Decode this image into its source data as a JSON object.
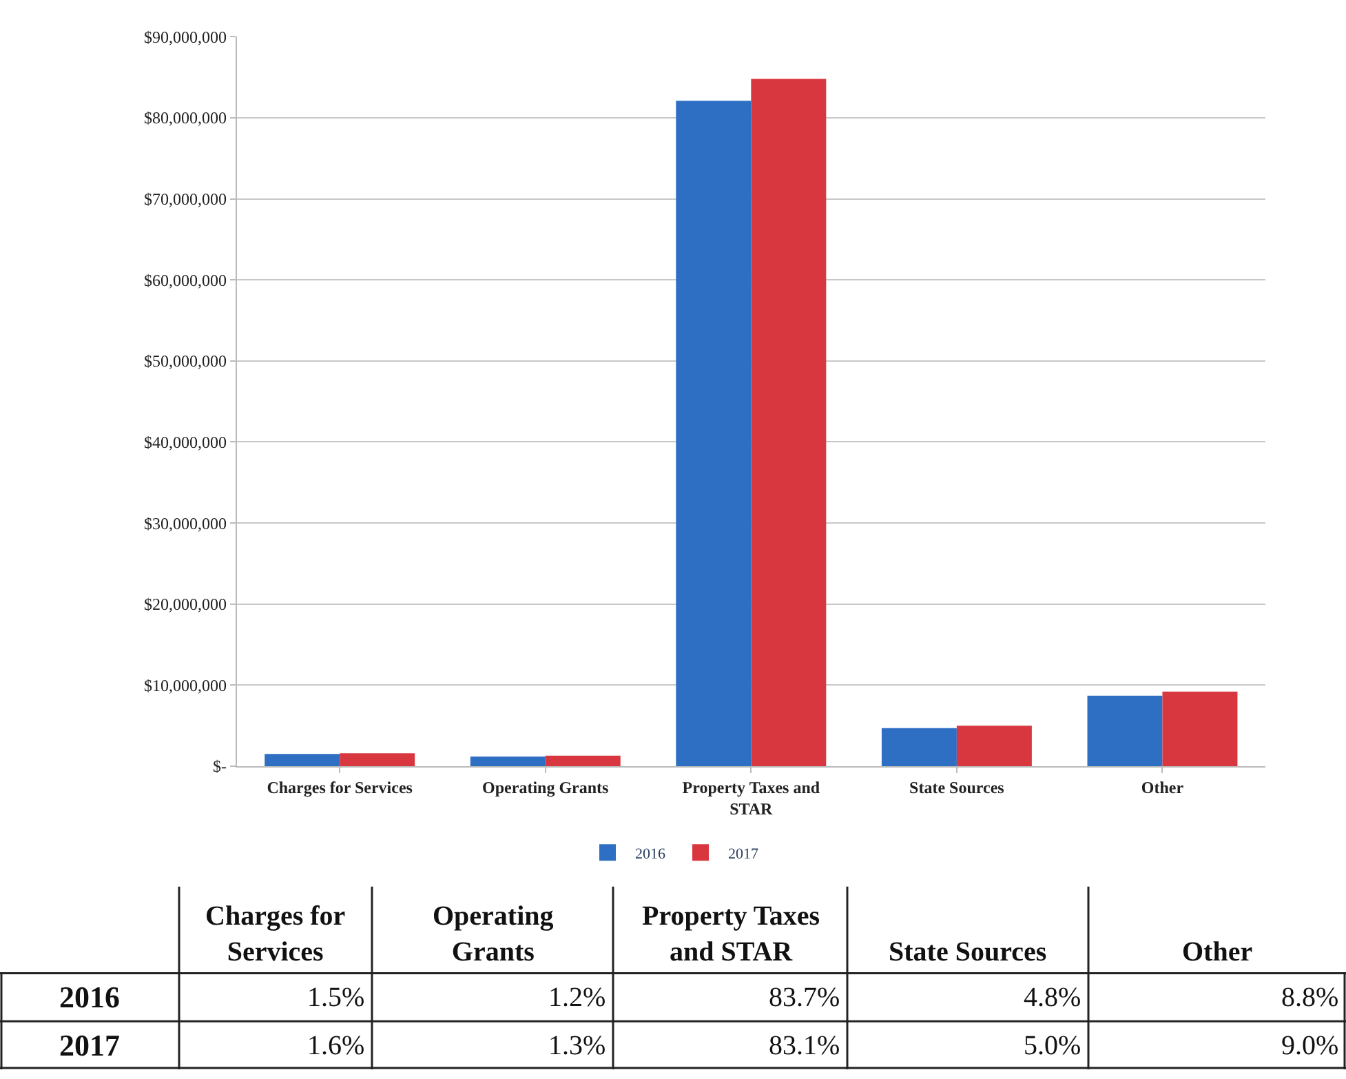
{
  "chart_data": [
    {
      "type": "bar",
      "categories": [
        "Charges for Services",
        "Operating Grants",
        "Property Taxes and STAR",
        "State Sources",
        "Other"
      ],
      "series": [
        {
          "name": "2016",
          "color": "#2e6fc4",
          "values": [
            1500000,
            1200000,
            82100000,
            4700000,
            8700000
          ]
        },
        {
          "name": "2017",
          "color": "#d9373f",
          "values": [
            1600000,
            1300000,
            84800000,
            5000000,
            9200000
          ]
        }
      ],
      "ylim": [
        0,
        90000000
      ],
      "yticks": [
        {
          "value": 0,
          "label": "$-"
        },
        {
          "value": 10000000,
          "label": "$10,000,000"
        },
        {
          "value": 20000000,
          "label": "$20,000,000"
        },
        {
          "value": 30000000,
          "label": "$30,000,000"
        },
        {
          "value": 40000000,
          "label": "$40,000,000"
        },
        {
          "value": 50000000,
          "label": "$50,000,000"
        },
        {
          "value": 60000000,
          "label": "$60,000,000"
        },
        {
          "value": 70000000,
          "label": "$70,000,000"
        },
        {
          "value": 80000000,
          "label": "$80,000,000"
        },
        {
          "value": 90000000,
          "label": "$90,000,000"
        }
      ],
      "grid": "y",
      "legend": "bottom"
    },
    {
      "type": "heatmap",
      "categories": [
        "Charges for Services",
        "Operating Grants",
        "Property Taxes and STAR",
        "State Sources",
        "Other"
      ],
      "y_categories": [
        "2016",
        "2017"
      ],
      "cells": [
        [
          1.5,
          1.2,
          83.7,
          4.8,
          8.8
        ],
        [
          1.6,
          1.3,
          83.1,
          5.0,
          9.0
        ]
      ],
      "cell_labels": [
        [
          "1.5%",
          "1.2%",
          "83.7%",
          "4.8%",
          "8.8%"
        ],
        [
          "1.6%",
          "1.3%",
          "83.1%",
          "5.0%",
          "9.0%"
        ]
      ]
    }
  ]
}
